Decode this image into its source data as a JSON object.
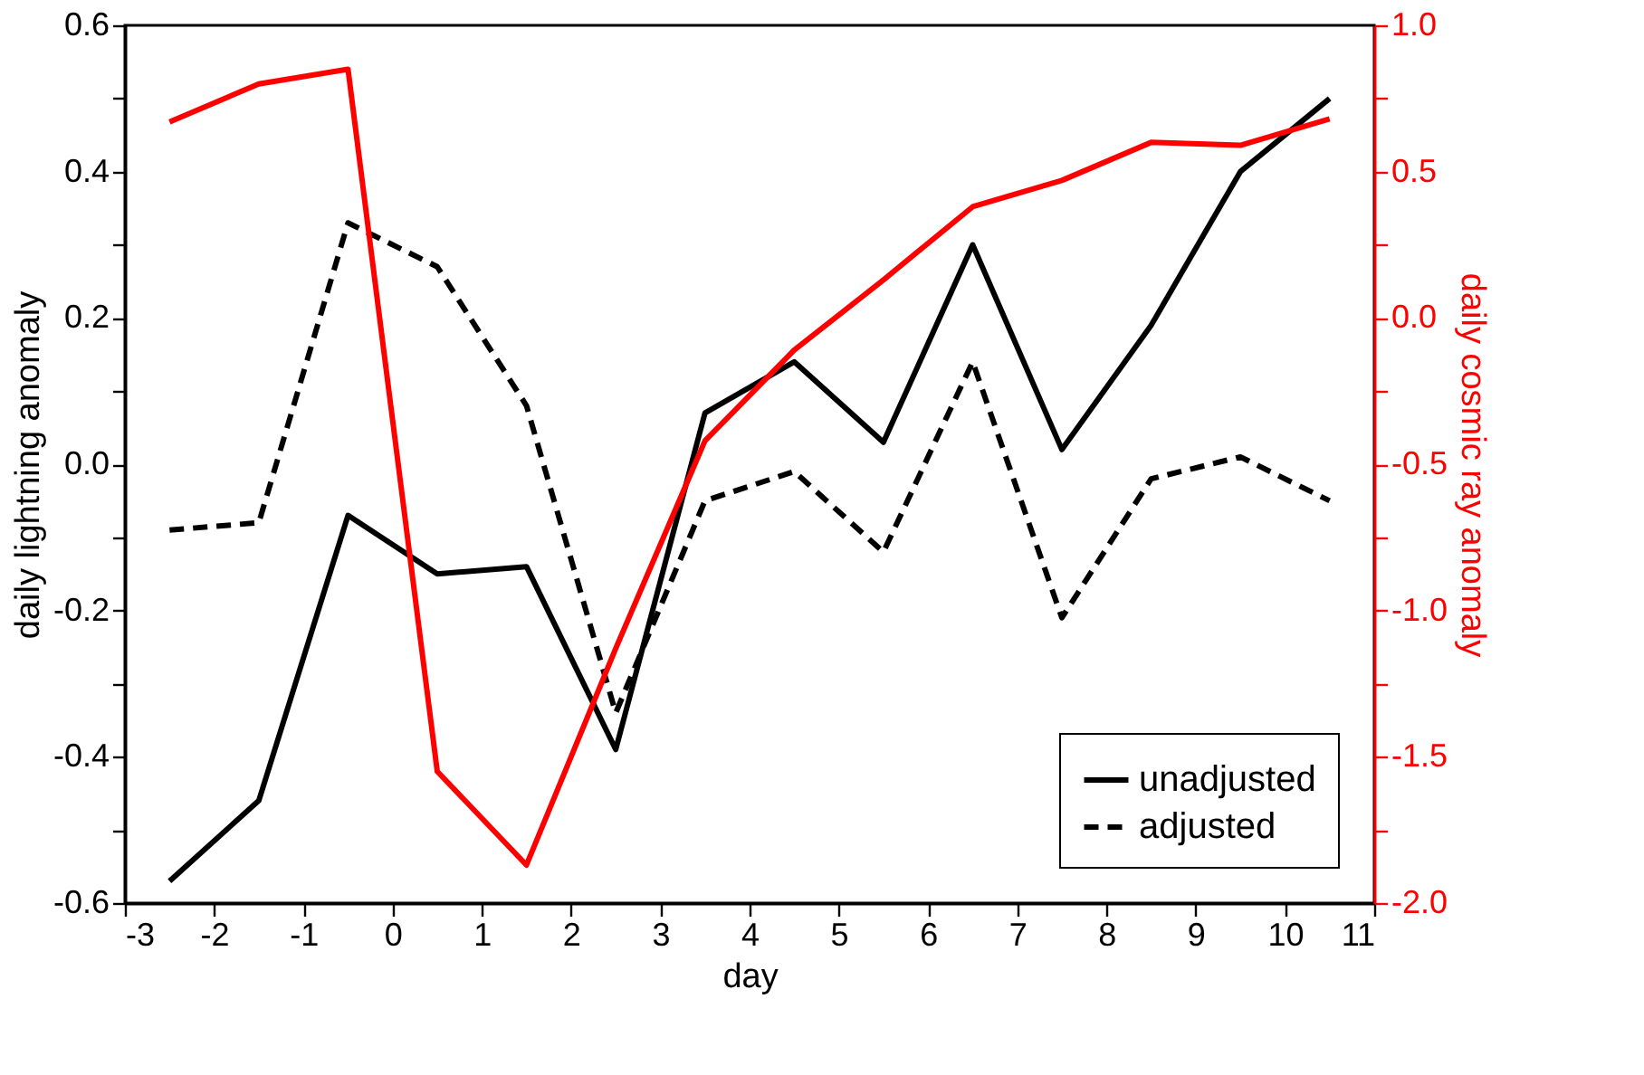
{
  "chart_data": {
    "type": "line",
    "xlabel": "day",
    "ylabel": "daily lightning anomaly",
    "y2label": "daily cosmic ray anomaly",
    "x": [
      -2.5,
      -1.5,
      -0.5,
      0.5,
      1.5,
      2.5,
      3.5,
      4.5,
      5.5,
      6.5,
      7.5,
      8.5,
      9.5,
      10.5
    ],
    "series": [
      {
        "name": "unadjusted",
        "color": "#000000",
        "line_style": "solid",
        "values": [
          -0.57,
          -0.46,
          -0.07,
          -0.15,
          -0.14,
          -0.39,
          0.07,
          0.14,
          0.03,
          0.3,
          0.02,
          0.19,
          0.4,
          0.5
        ]
      },
      {
        "name": "adjusted",
        "color": "#000000",
        "line_style": "dashed",
        "values": [
          -0.09,
          -0.08,
          0.33,
          0.27,
          0.08,
          -0.34,
          -0.05,
          -0.01,
          -0.12,
          0.14,
          -0.21,
          -0.02,
          0.01,
          -0.05
        ]
      },
      {
        "color": "#ff0000",
        "line_style": "solid",
        "axis": "y2",
        "values": [
          0.67,
          0.8,
          0.85,
          -1.55,
          -1.87,
          -1.13,
          -0.42,
          -0.11,
          0.13,
          0.38,
          0.47,
          0.6,
          0.59,
          0.68
        ]
      }
    ],
    "xlim": [
      -3,
      11
    ],
    "xticks": [
      -3,
      -2,
      -1,
      0,
      1,
      2,
      3,
      4,
      5,
      6,
      7,
      8,
      9,
      10,
      11
    ],
    "ylim": [
      -0.6,
      0.6
    ],
    "yticks": [
      -0.6,
      {
        "value": -0.5,
        "label": null
      },
      -0.4,
      {
        "value": -0.3,
        "label": null
      },
      -0.2,
      {
        "value": -0.1,
        "label": null
      },
      {
        "value": 0,
        "label": "0.0"
      },
      {
        "value": 0.1,
        "label": null
      },
      0.2,
      {
        "value": 0.3,
        "label": null
      },
      0.4,
      {
        "value": 0.5,
        "label": null
      },
      0.6
    ],
    "y2lim": [
      -2.0,
      1.0
    ],
    "y2ticks": [
      {
        "value": -2,
        "label": "-2.0"
      },
      {
        "value": -1.75,
        "label": null
      },
      -1.5,
      {
        "value": -1.25,
        "label": null
      },
      {
        "value": -1,
        "label": "-1.0"
      },
      {
        "value": -0.75,
        "label": null
      },
      -0.5,
      {
        "value": -0.25,
        "label": null
      },
      {
        "value": 0,
        "label": "0.0"
      },
      {
        "value": 0.25,
        "label": null
      },
      0.5,
      {
        "value": 0.75,
        "label": null
      },
      {
        "value": 1,
        "label": "1.0"
      }
    ],
    "grid": false,
    "legend": "bottom right",
    "marker": "none"
  }
}
